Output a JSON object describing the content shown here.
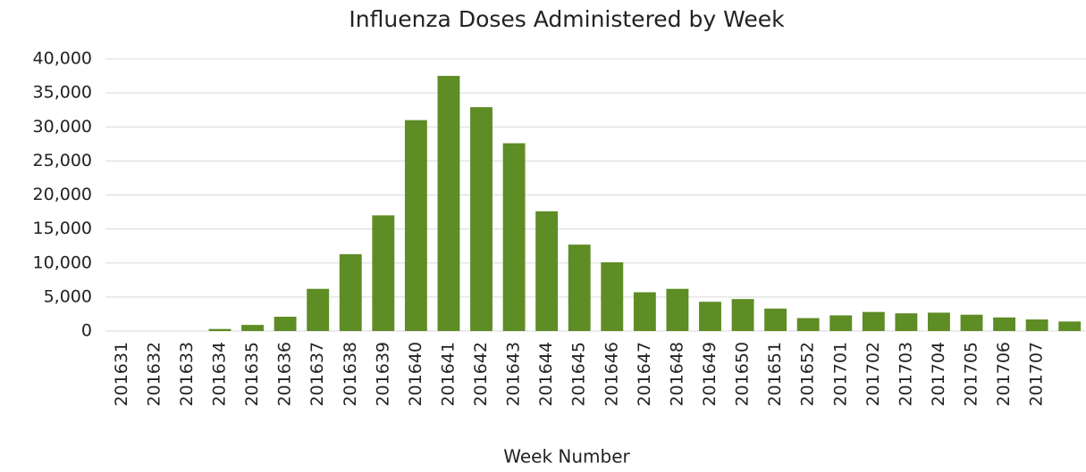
{
  "chart_data": {
    "type": "bar",
    "title": "Influenza Doses Administered by Week",
    "x_label": "Week Number",
    "categories": [
      "201631",
      "201632",
      "201633",
      "201634",
      "201635",
      "201636",
      "201637",
      "201638",
      "201639",
      "201640",
      "201641",
      "201642",
      "201643",
      "201644",
      "201645",
      "201646",
      "201647",
      "201648",
      "201649",
      "201650",
      "201651",
      "201652",
      "201701",
      "201702",
      "201703",
      "201704",
      "201705",
      "201706",
      "201707",
      null
    ],
    "values": [
      0,
      0,
      0,
      300,
      900,
      2100,
      6200,
      11300,
      17000,
      31000,
      37500,
      32900,
      27600,
      17600,
      12700,
      10100,
      5700,
      6200,
      4300,
      4700,
      3300,
      1900,
      2300,
      2800,
      2600,
      2700,
      2400,
      2000,
      1700,
      1400
    ],
    "color": "#5e8c25",
    "ylim": [
      0,
      40000
    ],
    "yticks": [
      0,
      {
        "value": 5000,
        "label": "5,000"
      },
      {
        "value": 10000,
        "label": "10,000"
      },
      {
        "value": 15000,
        "label": "15,000"
      },
      {
        "value": 20000,
        "label": "20,000"
      },
      {
        "value": 25000,
        "label": "25,000"
      },
      {
        "value": 30000,
        "label": "30,000"
      },
      {
        "value": 35000,
        "label": "35,000"
      },
      {
        "value": 40000,
        "label": "40,000"
      }
    ],
    "grid": true
  }
}
